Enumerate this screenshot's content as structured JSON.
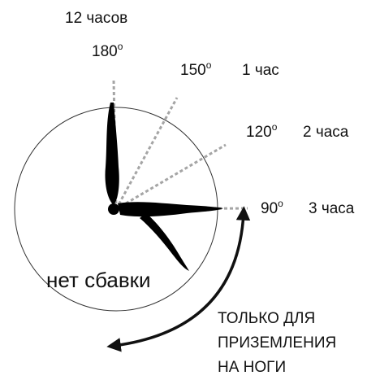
{
  "labels": {
    "hour12": "12 часов",
    "deg180": {
      "number": "180",
      "degree": "o"
    },
    "deg150": {
      "number": "150",
      "degree": "o"
    },
    "hour1": "1 час",
    "deg120": {
      "number": "120",
      "degree": "o"
    },
    "hour2": "2 часа",
    "deg90": {
      "number": "90",
      "degree": "o"
    },
    "hour3": "3 часа",
    "no_deduction": "нет сбавки",
    "feet_only": [
      "ТОЛЬКО ДЛЯ",
      "ПРИЗЕМЛЕНИЯ",
      "НА НОГИ"
    ]
  }
}
